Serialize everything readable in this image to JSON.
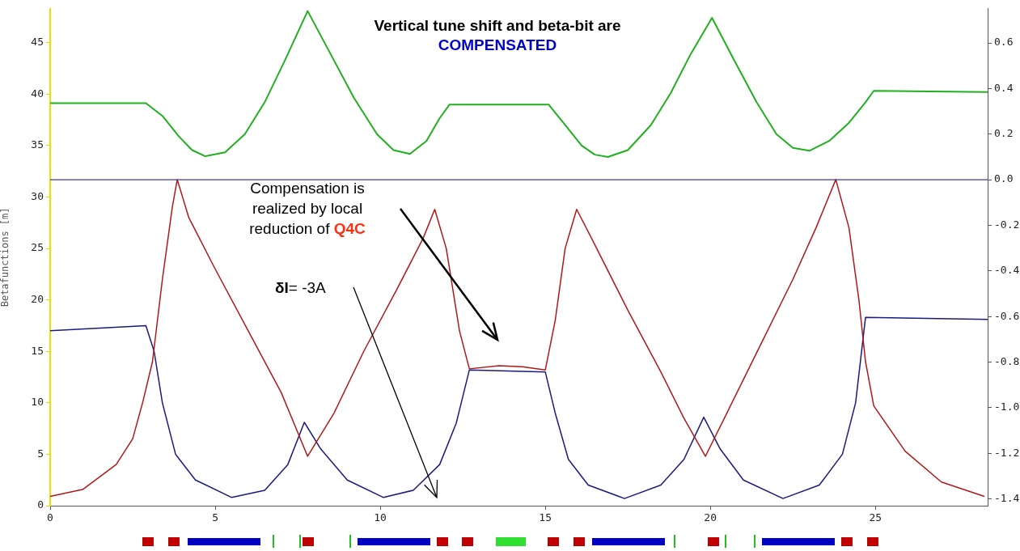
{
  "chart_data": {
    "type": "line",
    "title": "Vertical tune shift and beta-bit are COMPENSATED",
    "ylabel": "Betafunctions [m]",
    "annotations": [
      "Compensation is realized by local reduction of Q4C",
      "δI= -3A"
    ],
    "xlim": [
      0,
      28.4
    ],
    "xticks": [
      0,
      5,
      10,
      15,
      20,
      25
    ],
    "ylim": [
      0,
      48.3
    ],
    "yticks": [
      0,
      5,
      10,
      15,
      20,
      25,
      30,
      35,
      40,
      45
    ],
    "y2lim": [
      -1.43,
      0.75
    ],
    "y2ticks": [
      {
        "value": -1.4,
        "label": "-1.4"
      },
      {
        "value": -1.2,
        "label": "-1.2"
      },
      {
        "value": -1.0,
        "label": "-1.0"
      },
      {
        "value": -0.8,
        "label": "-0.8"
      },
      {
        "value": -0.6,
        "label": "-0.6"
      },
      {
        "value": -0.4,
        "label": "-0.4"
      },
      {
        "value": -0.2,
        "label": "-0.2"
      },
      {
        "value": 0,
        "label": "0.0"
      },
      0.2,
      0.4,
      0.6
    ],
    "ref_lines": [
      {
        "axis": "y2",
        "value": 0,
        "color": "#3a3a9a"
      }
    ],
    "series": [
      {
        "color": "#20b020",
        "axis": "y2",
        "x": [
          0,
          2.9,
          3.4,
          3.9,
          4.3,
          4.7,
          5.3,
          5.9,
          6.5,
          7.1,
          7.8,
          8.5,
          9.2,
          9.9,
          10.4,
          10.9,
          11.4,
          11.8,
          12.1,
          15.1,
          15.6,
          16.1,
          16.5,
          16.9,
          17.5,
          18.2,
          18.8,
          19.4,
          20.05,
          20.7,
          21.4,
          22.0,
          22.5,
          23.0,
          23.6,
          24.2,
          24.7,
          24.95,
          28.4
        ],
        "values": [
          0.336,
          0.336,
          0.28,
          0.19,
          0.13,
          0.103,
          0.12,
          0.2,
          0.34,
          0.52,
          0.74,
          0.55,
          0.36,
          0.2,
          0.13,
          0.113,
          0.17,
          0.27,
          0.33,
          0.33,
          0.24,
          0.15,
          0.11,
          0.1,
          0.13,
          0.24,
          0.38,
          0.55,
          0.71,
          0.53,
          0.34,
          0.2,
          0.14,
          0.127,
          0.17,
          0.25,
          0.34,
          0.39,
          0.385
        ]
      },
      {
        "color": "#b01818",
        "x": [
          0,
          1,
          2,
          2.5,
          2.8,
          3.1,
          3.4,
          3.7,
          3.85,
          4.2,
          5,
          6,
          7,
          7.8,
          8.6,
          9.5,
          10.5,
          11.3,
          11.65,
          12.0,
          12.4,
          12.7,
          13.6,
          14.3,
          15.0,
          15.3,
          15.6,
          15.95,
          16.4,
          17.5,
          18.5,
          19.2,
          19.85,
          20.5,
          21.5,
          22.5,
          23.2,
          23.8,
          24.2,
          24.5,
          24.7,
          24.95,
          25.9,
          27,
          28.3
        ],
        "values": [
          0.9,
          1.6,
          4,
          6.5,
          10,
          14,
          22,
          29,
          31.7,
          28,
          23,
          17,
          11,
          4.8,
          9,
          15,
          21,
          26,
          28.8,
          25,
          17,
          13.3,
          13.6,
          13.5,
          13.2,
          18,
          25,
          28.8,
          26,
          19,
          13,
          8.5,
          4.8,
          9,
          15.5,
          22,
          27,
          31.7,
          27,
          20,
          14,
          9.7,
          5.3,
          2.3,
          0.9
        ]
      },
      {
        "color": "#1a1a80",
        "x": [
          0,
          2.9,
          3.15,
          3.4,
          3.8,
          4.4,
          5.5,
          6.5,
          7.2,
          7.7,
          8.2,
          9,
          10.1,
          11.0,
          11.8,
          12.3,
          12.7,
          15.0,
          15.3,
          15.7,
          16.3,
          17.4,
          18.5,
          19.2,
          19.8,
          20.3,
          21,
          22.2,
          23.3,
          24.0,
          24.4,
          24.7,
          28.4
        ],
        "values": [
          17,
          17.5,
          15,
          10,
          5,
          2.5,
          0.8,
          1.5,
          4,
          8.1,
          5.5,
          2.5,
          0.8,
          1.5,
          4,
          8,
          13.2,
          13,
          9,
          4.5,
          2,
          0.7,
          2,
          4.5,
          8.6,
          5.5,
          2.5,
          0.7,
          2,
          5,
          10,
          18.3,
          18.1
        ]
      }
    ]
  }
}
